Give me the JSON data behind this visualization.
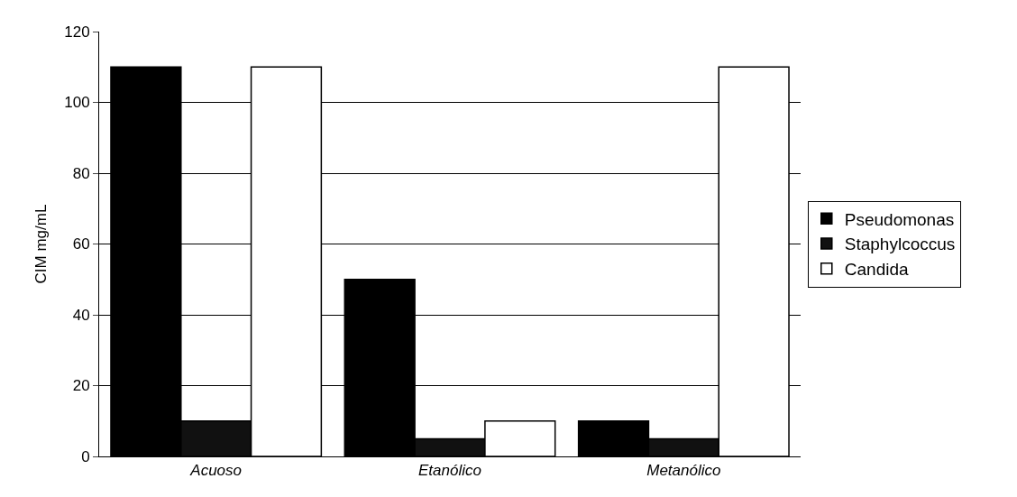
{
  "chart_data": {
    "type": "bar",
    "ylabel": "CIM mg/mL",
    "categories": [
      "Acuoso",
      "Etanólico",
      "Metanólico"
    ],
    "series": [
      {
        "name": "Pseudomonas",
        "color": "#000000",
        "values": [
          110,
          50,
          10
        ]
      },
      {
        "name": "Staphylcoccus",
        "color": "#111111",
        "values": [
          10,
          5,
          5
        ]
      },
      {
        "name": "Candida",
        "color": "#ffffff",
        "values": [
          110,
          10,
          110
        ]
      }
    ],
    "ylim": [
      0,
      120
    ],
    "yticks": [
      0,
      20,
      40,
      60,
      80,
      100,
      120
    ],
    "grid": "y",
    "legend": "right"
  }
}
